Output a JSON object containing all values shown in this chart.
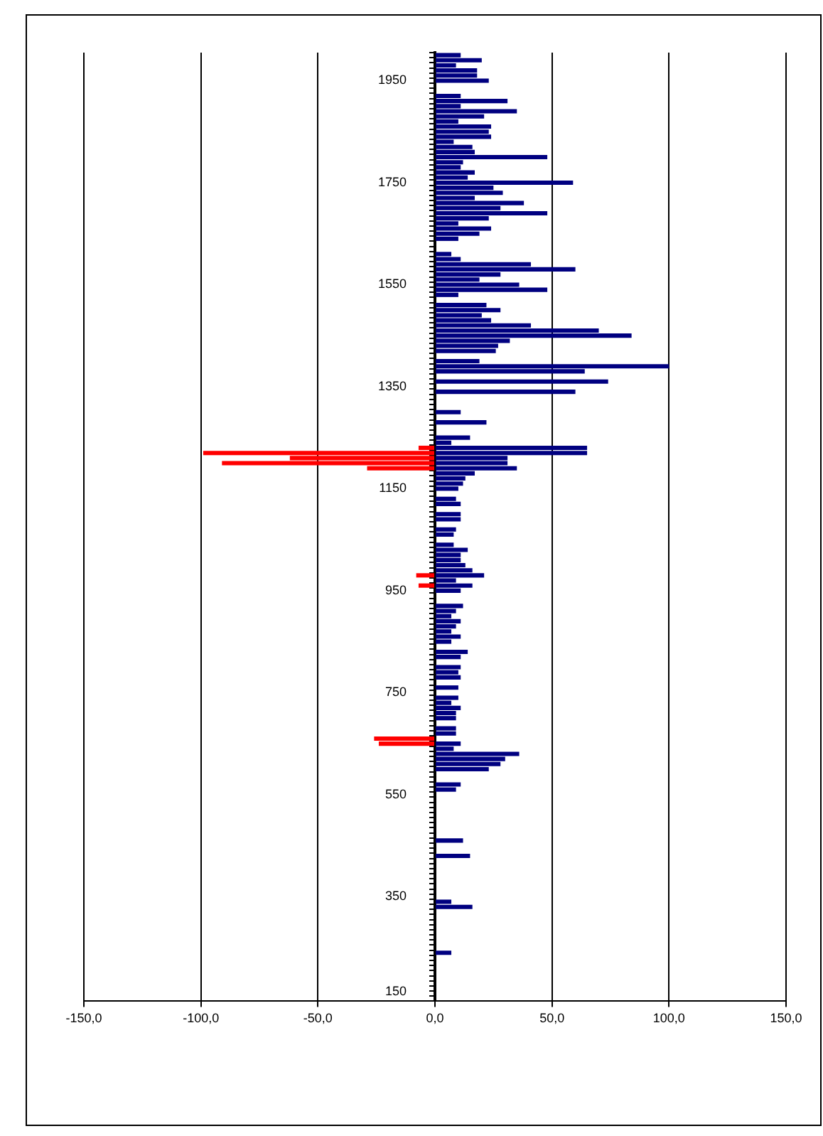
{
  "chart_data": {
    "type": "bar",
    "orientation": "horizontal",
    "stacked": true,
    "grid": "x",
    "categories": [
      null,
      null,
      null,
      null,
      null,
      "1950",
      null,
      null,
      null,
      null,
      null,
      null,
      null,
      null,
      null,
      null,
      null,
      null,
      null,
      null,
      null,
      null,
      null,
      null,
      null,
      "1750",
      null,
      null,
      null,
      null,
      null,
      null,
      null,
      null,
      null,
      null,
      null,
      null,
      null,
      null,
      null,
      null,
      null,
      null,
      null,
      "1550",
      null,
      null,
      null,
      null,
      null,
      null,
      null,
      null,
      null,
      null,
      null,
      null,
      null,
      null,
      null,
      null,
      null,
      null,
      null,
      "1350",
      null,
      null,
      null,
      null,
      null,
      null,
      null,
      null,
      null,
      null,
      null,
      null,
      null,
      null,
      null,
      null,
      null,
      null,
      null,
      "1150",
      null,
      null,
      null,
      null,
      null,
      null,
      null,
      null,
      null,
      null,
      null,
      null,
      null,
      null,
      null,
      null,
      null,
      null,
      null,
      "950",
      null,
      null,
      null,
      null,
      null,
      null,
      null,
      null,
      null,
      null,
      null,
      null,
      null,
      null,
      null,
      null,
      null,
      null,
      null,
      "750",
      null,
      null,
      null,
      null,
      null,
      null,
      null,
      null,
      null,
      null,
      null,
      null,
      null,
      null,
      null,
      null,
      null,
      null,
      null,
      "550",
      null,
      null,
      null,
      null,
      null,
      null,
      null,
      null,
      null,
      null,
      null,
      null,
      null,
      null,
      null,
      null,
      null,
      null,
      null,
      "350",
      null,
      null,
      null,
      null,
      null,
      null,
      null,
      null,
      null,
      null,
      null,
      null,
      null,
      null,
      null,
      null,
      null,
      null,
      null,
      "150"
    ],
    "xlim": [
      -150,
      150
    ],
    "xticks": [
      {
        "value": -150,
        "label": "-150,0"
      },
      {
        "value": -100,
        "label": "-100,0"
      },
      {
        "value": -50,
        "label": "-50,0"
      },
      {
        "value": 0,
        "label": "0,0"
      },
      {
        "value": 50,
        "label": "50,0"
      },
      {
        "value": 100,
        "label": "100,0"
      },
      {
        "value": 150,
        "label": "150,0"
      }
    ],
    "series": [
      {
        "color": "#000080",
        "values": [
          11,
          20,
          9,
          18,
          18,
          23,
          null,
          null,
          11,
          31,
          11,
          35,
          21,
          10,
          24,
          23,
          24,
          8,
          16,
          17,
          48,
          12,
          11,
          17,
          14,
          59,
          25,
          29,
          17,
          38,
          28,
          48,
          23,
          10,
          24,
          19,
          10,
          null,
          null,
          7,
          11,
          41,
          60,
          28,
          19,
          36,
          48,
          10,
          null,
          22,
          28,
          20,
          24,
          41,
          70,
          84,
          32,
          27,
          26,
          null,
          19,
          100,
          64,
          null,
          74,
          null,
          60,
          null,
          null,
          null,
          11,
          null,
          22,
          null,
          null,
          15,
          7,
          65,
          65,
          31,
          31,
          35,
          17,
          13,
          12,
          10,
          null,
          9,
          11,
          null,
          11,
          11,
          null,
          9,
          8,
          null,
          8,
          14,
          11,
          11,
          13,
          16,
          21,
          9,
          16,
          11,
          null,
          null,
          12,
          9,
          7,
          11,
          9,
          7,
          11,
          7,
          null,
          14,
          11,
          null,
          11,
          10,
          11,
          null,
          10,
          null,
          10,
          7,
          11,
          9,
          9,
          null,
          9,
          9,
          null,
          11,
          8,
          36,
          30,
          28,
          23,
          null,
          null,
          11,
          9,
          null,
          null,
          null,
          null,
          null,
          null,
          null,
          null,
          null,
          12,
          null,
          null,
          15,
          null,
          null,
          null,
          null,
          null,
          null,
          null,
          null,
          7,
          16,
          null,
          null,
          null,
          null,
          null,
          null,
          null,
          null,
          7,
          null,
          null,
          null,
          null,
          null,
          null,
          null,
          null,
          null
        ]
      },
      {
        "color": "#ff0000",
        "values": [
          null,
          null,
          null,
          null,
          null,
          null,
          null,
          null,
          null,
          null,
          null,
          null,
          null,
          null,
          null,
          null,
          null,
          null,
          null,
          null,
          null,
          null,
          null,
          null,
          null,
          null,
          null,
          null,
          null,
          null,
          null,
          null,
          null,
          null,
          null,
          null,
          null,
          null,
          null,
          null,
          null,
          null,
          null,
          null,
          null,
          null,
          null,
          null,
          null,
          null,
          null,
          null,
          null,
          null,
          null,
          null,
          null,
          null,
          null,
          null,
          null,
          null,
          null,
          null,
          null,
          null,
          null,
          null,
          null,
          null,
          null,
          null,
          null,
          null,
          null,
          null,
          null,
          -7,
          -99,
          -62,
          -91,
          -29,
          null,
          null,
          null,
          null,
          null,
          null,
          null,
          null,
          null,
          null,
          null,
          null,
          null,
          null,
          null,
          null,
          null,
          null,
          null,
          null,
          -8,
          null,
          -7,
          null,
          null,
          null,
          null,
          null,
          null,
          null,
          null,
          null,
          null,
          null,
          null,
          null,
          null,
          null,
          null,
          null,
          null,
          null,
          null,
          null,
          null,
          null,
          null,
          null,
          null,
          null,
          null,
          null,
          -26,
          -24,
          null,
          null,
          null,
          null,
          null,
          null,
          null,
          null,
          null,
          null,
          null,
          null,
          null,
          null,
          null,
          null,
          null,
          null,
          null,
          null,
          null,
          null,
          null,
          null,
          null,
          null,
          null,
          null,
          null,
          null,
          null,
          null,
          null,
          null,
          null,
          null,
          null,
          null,
          null,
          null,
          null,
          null,
          null,
          null,
          null,
          null,
          null,
          null,
          null,
          null
        ]
      }
    ]
  }
}
